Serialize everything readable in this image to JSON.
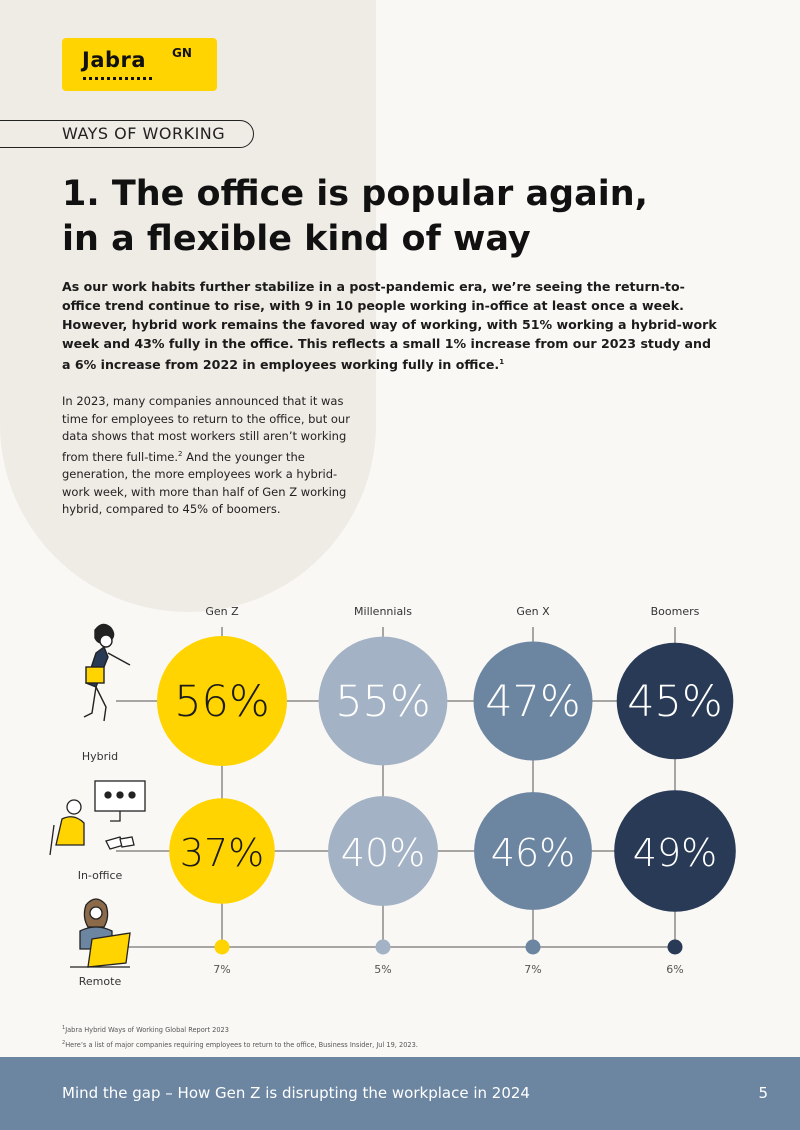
{
  "brand": {
    "logo_text": "Jabra",
    "logo_suffix": "GN",
    "accent": "#ffd400"
  },
  "section_tag": "WAYS OF WORKING",
  "title_line1": "1. The office is popular again,",
  "title_line2": "in a flexible kind of way",
  "lead": {
    "text": "As our work habits further stabilize in a post-pandemic era, we’re seeing the return-to-office trend continue to rise, with 9 in 10 people working in-office at least once a week. However, hybrid work remains the favored way of working, with 51% working a hybrid-work week and 43% fully in the office. This reflects a small 1% increase from our 2023 study and a 6% increase from 2022 in employees working fully in office.",
    "footnote_ref": "1"
  },
  "body": {
    "text_a": "In 2023, many companies announced that it was time for employees to return to the office, but our data shows that most workers still aren’t working from there full-time.",
    "footnote_ref": "2",
    "text_b": " And the younger the generation, the more employees work a hybrid-work week, with more than half of Gen Z working hybrid, compared to 45% of boomers."
  },
  "chart_data": {
    "type": "bubble-matrix",
    "categories": [
      "Gen Z",
      "Millennials",
      "Gen X",
      "Boomers"
    ],
    "series": [
      {
        "name": "Hybrid",
        "values": [
          56,
          55,
          47,
          45
        ],
        "labels": [
          "56%",
          "55%",
          "47%",
          "45%"
        ]
      },
      {
        "name": "In-office",
        "values": [
          37,
          40,
          46,
          49
        ],
        "labels": [
          "37%",
          "40%",
          "46%",
          "49%"
        ]
      },
      {
        "name": "Remote",
        "values": [
          7,
          5,
          7,
          6
        ],
        "labels": [
          "7%",
          "5%",
          "7%",
          "6%"
        ]
      }
    ],
    "colors": [
      "#ffd400",
      "#a3b2c4",
      "#6c86a2",
      "#283a56"
    ]
  },
  "footnotes": [
    {
      "num": "1",
      "text": "Jabra Hybrid Ways of Working Global Report 2023"
    },
    {
      "num": "2",
      "text": "Here’s a list of major companies requiring employees to return to the office, Business Insider, Jul 19, 2023."
    }
  ],
  "footer": {
    "text": "Mind the gap – How Gen Z is disrupting the workplace in 2024",
    "page": "5"
  }
}
